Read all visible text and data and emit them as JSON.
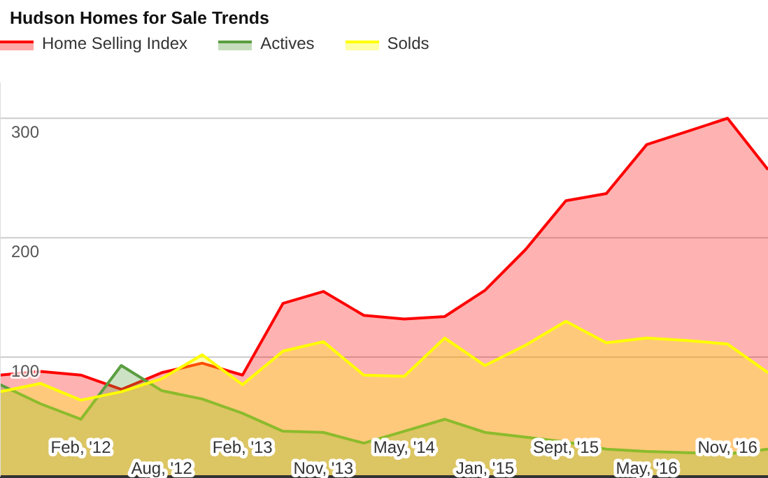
{
  "chart_data": {
    "type": "area",
    "title": "Hudson Homes for Sale Trends",
    "categories": [
      null,
      null,
      "Feb, '12",
      null,
      "Aug, '12",
      null,
      "Feb, '13",
      null,
      "Nov, '13",
      null,
      "May, '14",
      null,
      "Jan, '15",
      null,
      "Sept, '15",
      null,
      "May, '16",
      null,
      "Nov, '16",
      null
    ],
    "series": [
      {
        "name": "Home Selling Index",
        "color": "#ff0000",
        "values": [
          85,
          88,
          85,
          73,
          87,
          95,
          85,
          145,
          155,
          135,
          132,
          134,
          156,
          190,
          231,
          237,
          278,
          289,
          300,
          257
        ]
      },
      {
        "name": "Actives",
        "color": "#5a9e40",
        "values": [
          77,
          61,
          48,
          93,
          72,
          65,
          53,
          38,
          37,
          28,
          38,
          48,
          37,
          33,
          29,
          23,
          21,
          20,
          19,
          23
        ]
      },
      {
        "name": "Solds",
        "color": "#ffff00",
        "values": [
          71,
          78,
          64,
          71,
          82,
          102,
          77,
          105,
          113,
          85,
          84,
          116,
          93,
          110,
          130,
          112,
          116,
          114,
          111,
          87
        ]
      }
    ],
    "ylim": [
      0,
      330
    ],
    "yticks": [
      100,
      200,
      300
    ],
    "grid": "y",
    "legend": "top left",
    "marker": "none"
  }
}
